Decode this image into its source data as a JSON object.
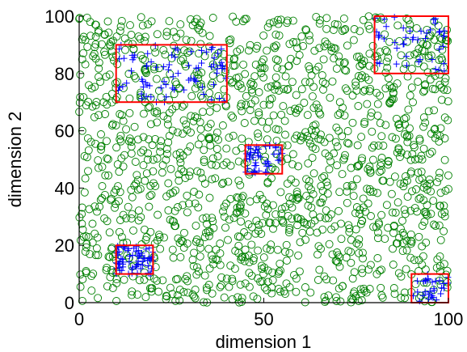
{
  "chart_data": {
    "type": "scatter",
    "title": "",
    "xlabel": "dimension 1",
    "ylabel": "dimension 2",
    "xlim": [
      0,
      100
    ],
    "ylim": [
      0,
      100
    ],
    "xticks": [
      "0",
      "50",
      "100"
    ],
    "yticks": [
      "0",
      "20",
      "40",
      "60",
      "80",
      "100"
    ],
    "grid": false,
    "legend": "none",
    "series": [
      {
        "marker": "circle-open",
        "color": "#008000",
        "count": 1500
      },
      {
        "marker": "plus",
        "color": "#0000ff",
        "clusters": [
          {
            "region": [
              [
                10,
                40
              ],
              [
                70,
                90
              ]
            ],
            "count": 80
          },
          {
            "region": [
              [
                80,
                100
              ],
              [
                80,
                100
              ]
            ],
            "count": 45
          },
          {
            "region": [
              [
                45,
                55
              ],
              [
                45,
                55
              ]
            ],
            "count": 45
          },
          {
            "region": [
              [
                10,
                20
              ],
              [
                10,
                20
              ]
            ],
            "count": 65
          },
          {
            "region": [
              [
                90,
                100
              ],
              [
                0,
                10
              ]
            ],
            "count": 30
          }
        ]
      }
    ],
    "rectangles": {
      "color": "#ff0000",
      "boxes": [
        {
          "x": [
            10,
            40
          ],
          "y": [
            70,
            90
          ]
        },
        {
          "x": [
            80,
            100
          ],
          "y": [
            80,
            100
          ]
        },
        {
          "x": [
            45,
            55
          ],
          "y": [
            45,
            55
          ]
        },
        {
          "x": [
            10,
            20
          ],
          "y": [
            10,
            20
          ]
        },
        {
          "x": [
            90,
            100
          ],
          "y": [
            0,
            10
          ]
        }
      ]
    }
  }
}
